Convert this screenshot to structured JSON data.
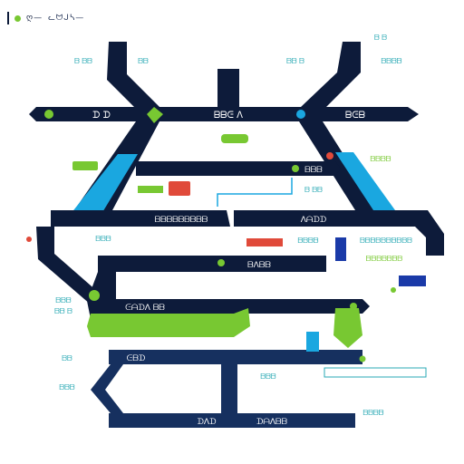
{
  "header": {
    "title": "ღ—",
    "subtitle": "ᓚᗢᒍᓴ—"
  },
  "colors": {
    "navy": "#0d1b3a",
    "navy_mid": "#16305f",
    "cyan": "#1aa7e0",
    "green": "#78c832",
    "red": "#e04a3a",
    "label_teal": "#2aa9b4"
  },
  "lines": {
    "top_left": "ᗪ ᗪ",
    "top_center": "ᗷᗷᕮ ᐱ",
    "top_right": "ᗷᕮᗷ",
    "mid_upper": "ᗷᗷᗷ",
    "mid_left": "ᗷᗷᗷᗷᗷᗷᗷᗷᗷ",
    "mid_right": "ᐱᗩᗪᗪ",
    "mid_lower": "ᗷᐱᗷᗷ",
    "lower_left": "ᕮᗩᗪᐱ ᗷᗷ",
    "bottom_left_station": "ᕮᗷᗪ",
    "bottom_center": "ᗪᐱᗪ",
    "bottom_right": "ᗪᗩᐱᗷᗷ"
  },
  "side_labels": {
    "l1": "ᗷ ᗷᗷ",
    "l2": "ᗷᗷ",
    "l3": "ᗷᗷᗷ",
    "l4": "ᗷᗷᗷ",
    "l5": "ᗷᗷ ᗷ",
    "l6": "ᗷᗷ",
    "l7": "ᗷᗷᗷ",
    "r1": "ᗷ ᗷ",
    "r2": "ᗷᗷ ᗷ",
    "r3": "ᗷᗷᗷᗷ",
    "r4": "ᗷᗷᗷᗷ",
    "r5": "ᗷᗷᗷᗷᗷᗷᗷᗷᗷᗷ",
    "r6": "ᗷᗷᗷᗷᗷᗷᗷ",
    "r7": "ᗷᗷᗷ",
    "r8": "ᗷᗷᗷᗷ",
    "m1": "ᗷ ᗷᗷ",
    "m2": "ᗷᗷᗷᗷ"
  }
}
